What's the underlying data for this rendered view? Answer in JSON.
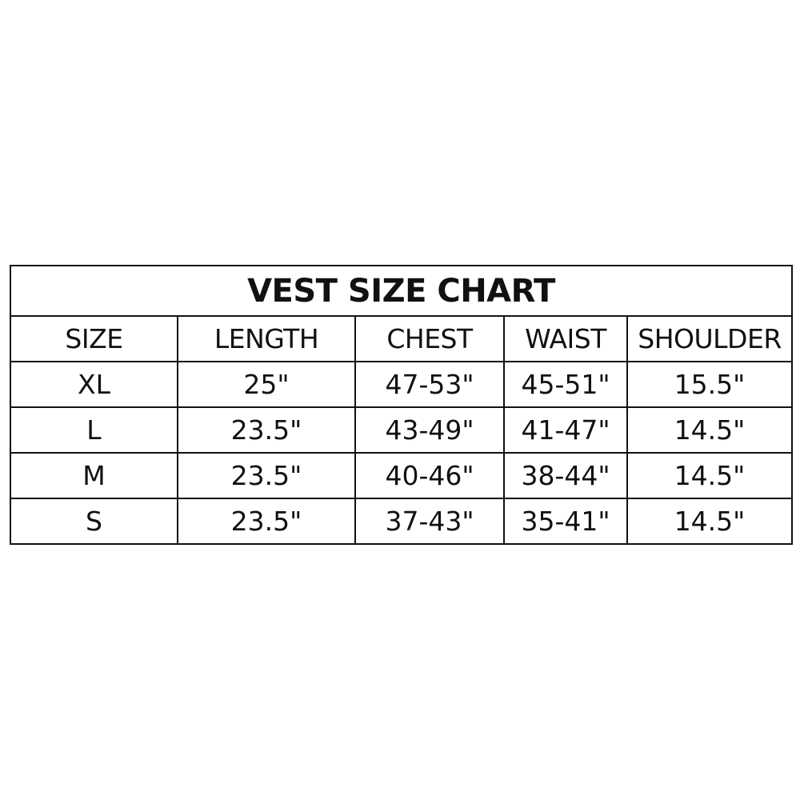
{
  "title": "VEST SIZE CHART",
  "headers": [
    "SIZE",
    "LENGTH",
    "CHEST",
    "WAIST",
    "SHOULDER"
  ],
  "rows": [
    [
      "XL",
      "25\"",
      "47-53\"",
      "45-51\"",
      "15.5\""
    ],
    [
      "L",
      "23.5\"",
      "43-49\"",
      "41-47\"",
      "14.5\""
    ],
    [
      "M",
      "23.5\"",
      "40-46\"",
      "38-44\"",
      "14.5\""
    ],
    [
      "S",
      "23.5\"",
      "37-43\"",
      "35-41\"",
      "14.5\""
    ]
  ]
}
